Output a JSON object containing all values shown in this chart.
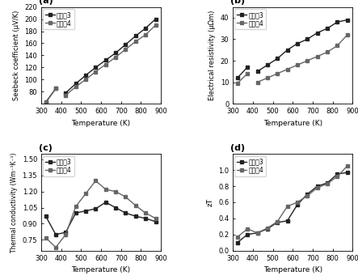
{
  "temp_sparse": [
    323,
    373
  ],
  "temp_dense": [
    423,
    473,
    523,
    573,
    623,
    673,
    723,
    773,
    823,
    873
  ],
  "seebeck_3_sparse": [
    62,
    85
  ],
  "seebeck_4_sparse": [
    63,
    85
  ],
  "seebeck_3_dense": [
    78,
    93,
    107,
    120,
    132,
    144,
    158,
    172,
    185,
    200
  ],
  "seebeck_4_dense": [
    74,
    88,
    100,
    113,
    125,
    137,
    150,
    163,
    174,
    190
  ],
  "resist_3_sparse": [
    12,
    17
  ],
  "resist_4_sparse": [
    9.5,
    14
  ],
  "resist_3_dense": [
    15,
    18,
    21,
    25,
    28,
    30,
    33,
    35,
    38,
    39
  ],
  "resist_4_dense": [
    10,
    12,
    14,
    16,
    18,
    20,
    22,
    24,
    27,
    32
  ],
  "therm_3_x": [
    323,
    373,
    423,
    473,
    523,
    573,
    623,
    673,
    723,
    773,
    823,
    873
  ],
  "therm_3_y": [
    0.97,
    0.8,
    0.82,
    1.0,
    1.02,
    1.04,
    1.1,
    1.05,
    1.0,
    0.97,
    0.95,
    0.92
  ],
  "therm_4_x": [
    323,
    373,
    423,
    473,
    523,
    573,
    623,
    673,
    723,
    773,
    823,
    873
  ],
  "therm_4_y": [
    0.77,
    0.68,
    0.8,
    1.06,
    1.18,
    1.3,
    1.22,
    1.2,
    1.15,
    1.07,
    1.0,
    0.95
  ],
  "zt_3_x": [
    323,
    373,
    423,
    473,
    523,
    573,
    623,
    673,
    723,
    773,
    823,
    873
  ],
  "zt_3_y": [
    0.1,
    0.2,
    0.22,
    0.27,
    0.35,
    0.37,
    0.57,
    0.7,
    0.8,
    0.84,
    0.95,
    0.97
  ],
  "zt_4_x": [
    323,
    373,
    423,
    473,
    523,
    573,
    623,
    673,
    723,
    773,
    823,
    873
  ],
  "zt_4_y": [
    0.17,
    0.27,
    0.22,
    0.28,
    0.36,
    0.55,
    0.6,
    0.68,
    0.78,
    0.83,
    0.92,
    1.05
  ],
  "color3": "#222222",
  "color4": "#666666",
  "marker3": "s",
  "marker4": "s",
  "markersize": 3.5,
  "linewidth": 1.0,
  "label3": "实施夃3",
  "label4": "实施夃4",
  "panel_a_title": "(a)",
  "panel_b_title": "(b)",
  "panel_c_title": "(c)",
  "panel_d_title": "(d)",
  "xlabel": "Temperature (K)",
  "ylabel_a": "Seebeck coefficient (μV/K)",
  "ylabel_b": "Electrical resistivity (μΩm)",
  "ylabel_c": "Thermal conductivity (Wm⁻¹K⁻¹)",
  "ylabel_d": "zT",
  "xlim": [
    300,
    900
  ],
  "xticks": [
    300,
    400,
    500,
    600,
    700,
    800,
    900
  ],
  "ylim_a": [
    60,
    220
  ],
  "yticks_a": [
    80,
    100,
    120,
    140,
    160,
    180,
    200,
    220
  ],
  "ylim_b": [
    0,
    45
  ],
  "yticks_b": [
    0,
    10,
    20,
    30,
    40
  ],
  "ylim_c": [
    0.65,
    1.55
  ],
  "yticks_c": [
    0.75,
    0.9,
    1.05,
    1.2,
    1.35,
    1.5
  ],
  "ylim_d": [
    0.0,
    1.2
  ],
  "yticks_d": [
    0.0,
    0.2,
    0.4,
    0.6,
    0.8,
    1.0
  ]
}
